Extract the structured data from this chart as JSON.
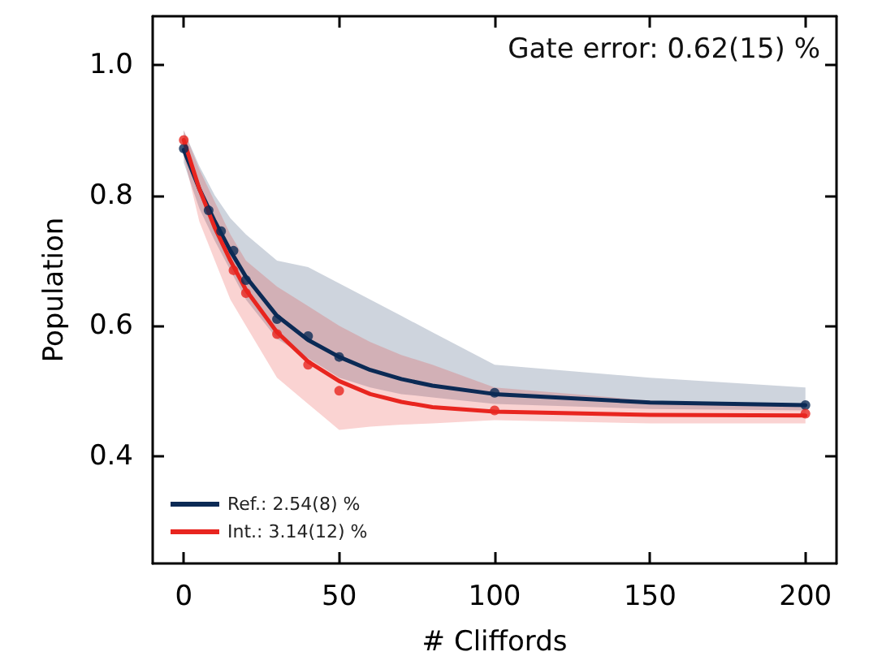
{
  "chart_data": {
    "type": "line",
    "xlabel": "# Cliffords",
    "ylabel": "Population",
    "annotations": [
      "Gate error: 0.62(15) %"
    ],
    "xlim": [
      -10,
      210
    ],
    "ylim": [
      0.235,
      1.075
    ],
    "xticks": [
      0,
      50,
      100,
      150,
      200
    ],
    "yticks": [
      0.4,
      0.6,
      0.8,
      {
        "value": 1.0,
        "label": "1.0"
      }
    ],
    "grid": false,
    "legend": "bottom left",
    "line_style": "solid",
    "series": [
      {
        "name": "Ref.: 2.54(8) %",
        "color": "#0b2a55",
        "marker": "none",
        "x": [
          0,
          5,
          10,
          15,
          20,
          30,
          40,
          50,
          60,
          70,
          80,
          100,
          150,
          200
        ],
        "values": [
          0.87,
          0.81,
          0.76,
          0.715,
          0.675,
          0.615,
          0.578,
          0.552,
          0.532,
          0.518,
          0.508,
          0.495,
          0.482,
          0.478
        ],
        "lower": [
          0.85,
          0.78,
          0.73,
          0.685,
          0.64,
          0.58,
          0.55,
          0.52,
          0.505,
          0.495,
          0.49,
          0.48,
          0.472,
          0.47
        ],
        "upper": [
          0.9,
          0.845,
          0.8,
          0.765,
          0.74,
          0.7,
          0.69,
          0.665,
          0.64,
          0.615,
          0.59,
          0.54,
          0.52,
          0.505
        ]
      },
      {
        "name": "Int.: 3.14(12) %",
        "color": "#e8251f",
        "marker": "none",
        "x": [
          0,
          5,
          10,
          15,
          20,
          30,
          40,
          50,
          60,
          70,
          80,
          100,
          150,
          200
        ],
        "values": [
          0.885,
          0.81,
          0.75,
          0.7,
          0.655,
          0.59,
          0.545,
          0.515,
          0.495,
          0.483,
          0.475,
          0.468,
          0.463,
          0.462
        ],
        "lower": [
          0.86,
          0.76,
          0.7,
          0.64,
          0.6,
          0.52,
          0.48,
          0.44,
          0.445,
          0.448,
          0.45,
          0.455,
          0.45,
          0.45
        ],
        "upper": [
          0.9,
          0.84,
          0.79,
          0.74,
          0.7,
          0.66,
          0.63,
          0.6,
          0.575,
          0.555,
          0.54,
          0.505,
          0.485,
          0.475
        ]
      },
      {
        "type": "scatter",
        "color": "#0b2a55",
        "marker": "circle",
        "x": [
          0,
          8,
          12,
          16,
          20,
          30,
          40,
          50,
          100,
          200
        ],
        "values": [
          0.872,
          0.777,
          0.745,
          0.715,
          0.67,
          0.61,
          0.584,
          0.552,
          0.497,
          0.478
        ]
      },
      {
        "type": "scatter",
        "color": "#e8251f",
        "marker": "circle",
        "x": [
          0,
          16,
          20,
          30,
          40,
          50,
          100,
          200
        ],
        "values": [
          0.885,
          0.685,
          0.65,
          0.587,
          0.54,
          0.5,
          0.47,
          0.465
        ]
      }
    ]
  }
}
